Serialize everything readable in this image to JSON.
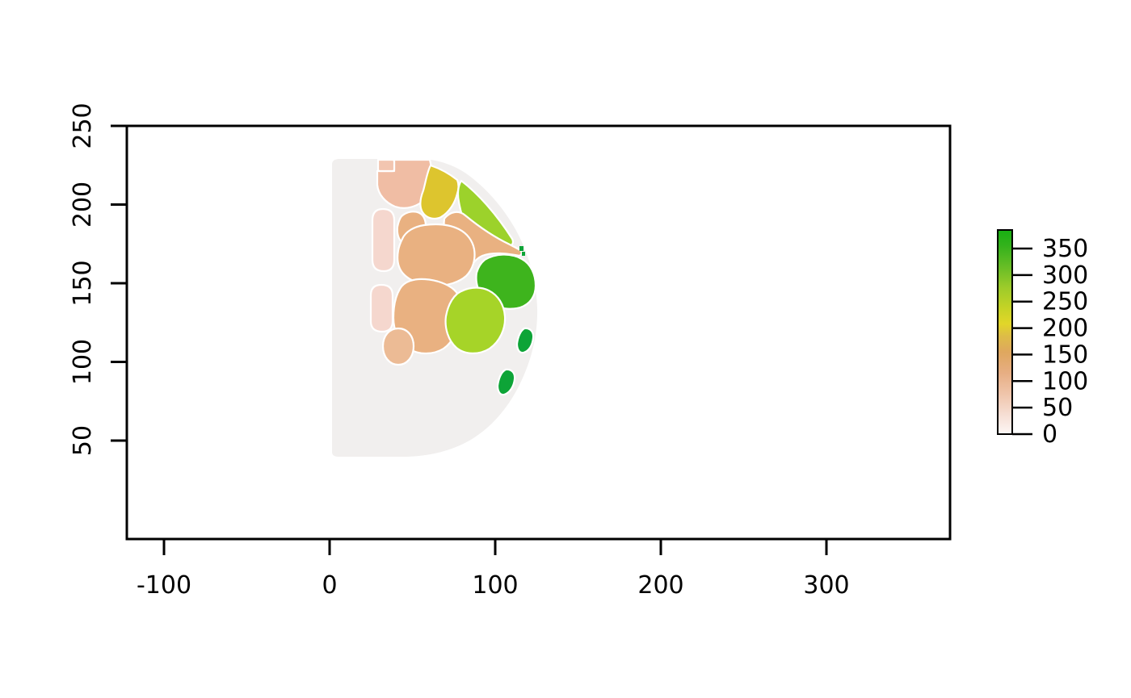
{
  "figure": {
    "background_color": "#ffffff",
    "box_color": "#000000"
  },
  "chart_data": {
    "type": "heatmap",
    "title": "",
    "xlabel": "",
    "ylabel": "",
    "grid": false,
    "x_ticks": [
      -100,
      0,
      100,
      200,
      300
    ],
    "y_ticks": [
      50,
      100,
      150,
      200,
      250
    ],
    "xlim": [
      -122,
      375
    ],
    "ylim": [
      -13,
      250
    ],
    "colorbar": {
      "position": "right",
      "ticks": [
        0,
        50,
        100,
        150,
        200,
        250,
        300,
        350
      ],
      "value_range": [
        0,
        385
      ],
      "gradient_stops": [
        {
          "at": 0.0,
          "color": "#fdf7f5"
        },
        {
          "at": 0.1,
          "color": "#f6ddd2"
        },
        {
          "at": 0.2,
          "color": "#efc4a9"
        },
        {
          "at": 0.3,
          "color": "#e7ae83"
        },
        {
          "at": 0.4,
          "color": "#dfa75f"
        },
        {
          "at": 0.48,
          "color": "#ddbc47"
        },
        {
          "at": 0.54,
          "color": "#e2d629"
        },
        {
          "at": 0.62,
          "color": "#c4d326"
        },
        {
          "at": 0.72,
          "color": "#9ccb2a"
        },
        {
          "at": 0.82,
          "color": "#67bd26"
        },
        {
          "at": 0.92,
          "color": "#35b21c"
        },
        {
          "at": 1.0,
          "color": "#17af12"
        }
      ]
    },
    "regions": [
      {
        "id": "disk-background",
        "label": "half-disc background",
        "color": "#f1efee",
        "value_est": 0,
        "cx": 45,
        "cy": 135
      },
      {
        "id": "top-salmon",
        "label": "upper salmon blob",
        "color": "#f0bda4",
        "value_est": 80,
        "cx": 45,
        "cy": 214
      },
      {
        "id": "pink-square",
        "label": "small pink square",
        "color": "#f2c5b0",
        "value_est": 70,
        "cx": 34,
        "cy": 225
      },
      {
        "id": "yellow",
        "label": "yellow blob",
        "color": "#ddc52e",
        "value_est": 195,
        "cx": 67,
        "cy": 208
      },
      {
        "id": "yellowgreen-rim",
        "label": "rim yellow-green blob",
        "color": "#9cd22b",
        "value_est": 260,
        "cx": 95,
        "cy": 195
      },
      {
        "id": "salmon-band",
        "label": "tan band to rim",
        "color": "#e9b181",
        "value_est": 105,
        "cx": 93,
        "cy": 180
      },
      {
        "id": "tan-small",
        "label": "small tan blob",
        "color": "#e9b181",
        "value_est": 105,
        "cx": 50,
        "cy": 184
      },
      {
        "id": "tan-upper",
        "label": "large upper tan blob",
        "color": "#e9b181",
        "value_est": 105,
        "cx": 64,
        "cy": 168
      },
      {
        "id": "green-central",
        "label": "central green blob",
        "color": "#3eb41d",
        "value_est": 330,
        "cx": 106,
        "cy": 151
      },
      {
        "id": "tan-lower",
        "label": "large lower tan blob",
        "color": "#e9b181",
        "value_est": 105,
        "cx": 59,
        "cy": 129
      },
      {
        "id": "yellowgreen-lower",
        "label": "lower yellow-green blob",
        "color": "#a6d428",
        "value_est": 255,
        "cx": 88,
        "cy": 126
      },
      {
        "id": "pink-capsule-1",
        "label": "pink capsule upper",
        "color": "#f5d7ce",
        "value_est": 42,
        "cx": 33,
        "cy": 177
      },
      {
        "id": "pink-capsule-2",
        "label": "pink capsule lower",
        "color": "#f5d7ce",
        "value_est": 42,
        "cx": 31,
        "cy": 134
      },
      {
        "id": "salmon-round",
        "label": "round salmon blob",
        "color": "#ecbb95",
        "value_est": 95,
        "cx": 41,
        "cy": 110
      },
      {
        "id": "darkgreen-1",
        "label": "dark green blob right",
        "color": "#0da437",
        "value_est": 360,
        "cx": 118,
        "cy": 114
      },
      {
        "id": "darkgreen-2",
        "label": "dark green blob lower",
        "color": "#0da437",
        "value_est": 360,
        "cx": 107,
        "cy": 87
      },
      {
        "id": "green-dot-1",
        "label": "tiny green speck",
        "color": "#0da437",
        "value_est": 340,
        "cx": 116,
        "cy": 173
      },
      {
        "id": "green-dot-2",
        "label": "tiny green speck",
        "color": "#0da437",
        "value_est": 340,
        "cx": 117,
        "cy": 169
      }
    ]
  }
}
